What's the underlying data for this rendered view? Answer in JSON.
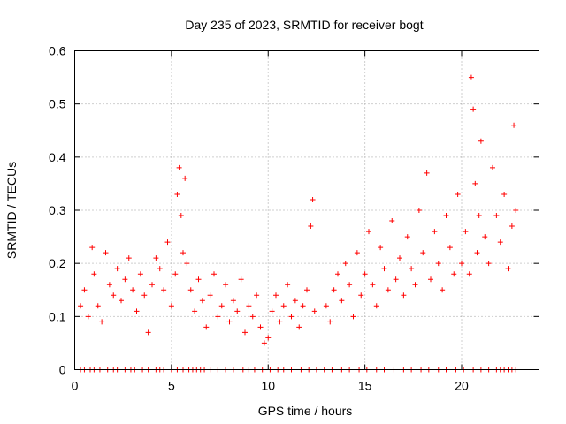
{
  "chart_data": {
    "type": "scatter",
    "title": "Day 235 of 2023, SRMTID for receiver bogt",
    "xlabel": "GPS time / hours",
    "ylabel": "SRMTID / TECUs",
    "xlim": [
      0,
      24
    ],
    "ylim": [
      0,
      0.6
    ],
    "xticks": [
      0,
      5,
      10,
      15,
      20
    ],
    "xtick_labels": [
      "0",
      "5",
      "10",
      "15",
      "20"
    ],
    "yticks": [
      0,
      0.1,
      0.2,
      0.3,
      0.4,
      0.5,
      0.6
    ],
    "ytick_labels": [
      "0",
      "0.1",
      "0.2",
      "0.3",
      "0.4",
      "0.5",
      "0.6"
    ],
    "grid": true,
    "marker": "+",
    "color": "#ff0000",
    "series": [
      {
        "name": "SRMTID",
        "x": [
          0.3,
          0.5,
          0.7,
          0.9,
          1.0,
          1.2,
          1.4,
          1.6,
          1.8,
          2.0,
          2.2,
          2.4,
          2.6,
          2.8,
          3.0,
          3.2,
          3.4,
          3.6,
          3.8,
          4.0,
          4.2,
          4.4,
          4.6,
          4.8,
          5.0,
          5.2,
          5.3,
          5.4,
          5.5,
          5.6,
          5.7,
          5.8,
          6.0,
          6.2,
          6.4,
          6.6,
          6.8,
          7.0,
          7.2,
          7.4,
          7.6,
          7.8,
          8.0,
          8.2,
          8.4,
          8.6,
          8.8,
          9.0,
          9.2,
          9.4,
          9.6,
          9.8,
          10.0,
          10.2,
          10.4,
          10.6,
          10.8,
          11.0,
          11.2,
          11.4,
          11.6,
          11.8,
          12.0,
          12.2,
          12.3,
          12.4,
          13.0,
          13.2,
          13.4,
          13.6,
          13.8,
          14.0,
          14.2,
          14.4,
          14.6,
          14.8,
          15.0,
          15.2,
          15.4,
          15.6,
          15.8,
          16.0,
          16.2,
          16.4,
          16.6,
          16.8,
          17.0,
          17.2,
          17.4,
          17.6,
          17.8,
          18.0,
          18.2,
          18.4,
          18.6,
          18.8,
          19.0,
          19.2,
          19.4,
          19.6,
          19.8,
          20.0,
          20.2,
          20.4,
          20.5,
          20.6,
          20.7,
          20.8,
          20.9,
          21.0,
          21.2,
          21.4,
          21.6,
          21.8,
          22.0,
          22.2,
          22.4,
          22.6,
          22.7,
          22.8
        ],
        "y": [
          0.12,
          0.15,
          0.1,
          0.23,
          0.18,
          0.12,
          0.09,
          0.22,
          0.16,
          0.14,
          0.19,
          0.13,
          0.17,
          0.21,
          0.15,
          0.11,
          0.18,
          0.14,
          0.07,
          0.16,
          0.21,
          0.19,
          0.15,
          0.24,
          0.12,
          0.18,
          0.33,
          0.38,
          0.29,
          0.22,
          0.36,
          0.2,
          0.15,
          0.11,
          0.17,
          0.13,
          0.08,
          0.14,
          0.18,
          0.1,
          0.12,
          0.16,
          0.09,
          0.13,
          0.11,
          0.17,
          0.07,
          0.12,
          0.1,
          0.14,
          0.08,
          0.05,
          0.06,
          0.11,
          0.14,
          0.09,
          0.12,
          0.16,
          0.1,
          0.13,
          0.08,
          0.12,
          0.15,
          0.27,
          0.32,
          0.11,
          0.12,
          0.09,
          0.15,
          0.18,
          0.13,
          0.2,
          0.16,
          0.1,
          0.22,
          0.14,
          0.18,
          0.26,
          0.16,
          0.12,
          0.23,
          0.19,
          0.15,
          0.28,
          0.17,
          0.21,
          0.14,
          0.25,
          0.19,
          0.16,
          0.3,
          0.22,
          0.37,
          0.17,
          0.26,
          0.2,
          0.15,
          0.29,
          0.23,
          0.18,
          0.33,
          0.2,
          0.26,
          0.18,
          0.55,
          0.49,
          0.35,
          0.22,
          0.29,
          0.43,
          0.25,
          0.2,
          0.38,
          0.29,
          0.24,
          0.33,
          0.19,
          0.27,
          0.46,
          0.3
        ]
      }
    ],
    "zero_markers_x": [
      0.3,
      0.5,
      0.8,
      1.0,
      1.3,
      1.7,
      2.0,
      2.2,
      2.6,
      2.9,
      3.1,
      3.5,
      3.8,
      4.2,
      4.4,
      4.6,
      5.0,
      5.3,
      5.6,
      5.9,
      6.1,
      6.3,
      6.5,
      6.7,
      7.0,
      7.4,
      7.8,
      8.2,
      8.7,
      9.0,
      9.3,
      9.7,
      10.1,
      10.5,
      10.8,
      11.2,
      11.7,
      12.1,
      12.5,
      12.9,
      13.3,
      13.8,
      14.2,
      14.7,
      15.1,
      15.6,
      16.0,
      16.5,
      17.0,
      17.4,
      17.9,
      18.3,
      18.8,
      19.2,
      19.7,
      20.1,
      20.6,
      21.0,
      21.4,
      21.8,
      22.0,
      22.2,
      22.4,
      22.6,
      22.8
    ]
  }
}
